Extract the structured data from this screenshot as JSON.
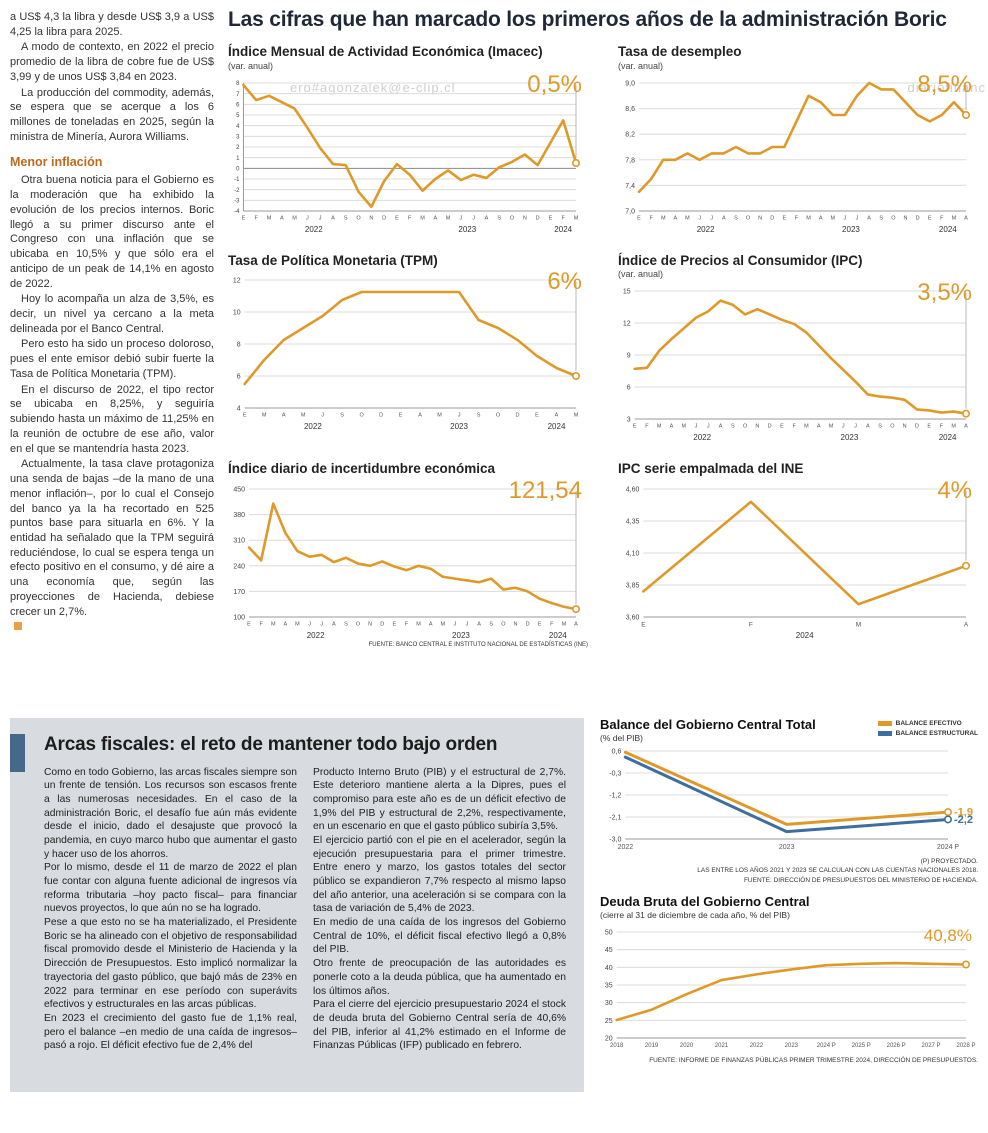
{
  "colors": {
    "accent_orange": "#DF9929",
    "accent_blue": "#3C6E9F",
    "headline_dark": "#1E2836",
    "section_bg": "#D8DCE0",
    "fiscal_accent_bar": "#46688A",
    "heading_orange": "#BE6A1E"
  },
  "watermarks": {
    "w1": "ero#agonzalek@e-clip.cl",
    "w2": "diariofinanc",
    "w3": "ero#agonzalek@e-clip.cl"
  },
  "headline": "Las cifras que han marcado los primeros años de la administración Boric",
  "left_column": {
    "intro_paragraphs": [
      "a US$ 4,3 la libra y desde US$ 3,9 a US$ 4,25 la libra para 2025.",
      "A modo de contexto, en 2022 el precio promedio de la libra de cobre fue de US$ 3,99 y de unos US$ 3,84 en 2023.",
      "La producción del commodity, además, se espera que se acerque a los 6 millones de toneladas en 2025, según la ministra de Minería, Aurora Williams."
    ],
    "heading": "Menor inflación",
    "body_paragraphs": [
      "Otra buena noticia para el Gobierno es la moderación que ha exhibido la evolución de los precios internos. Boric llegó a su primer discurso ante el Congreso con una inflación que se ubicaba en 10,5% y que sólo era el anticipo de un peak de 14,1% en agosto de 2022.",
      "Hoy lo acompaña un alza de 3,5%, es decir, un nivel ya cercano a la meta delineada por el Banco Central.",
      "Pero esto ha sido un proceso doloroso, pues el ente emisor debió subir fuerte la Tasa de Política Monetaria (TPM).",
      "En el discurso de 2022, el tipo rector se ubicaba en 8,25%, y seguiría subiendo hasta un máximo de 11,25% en la reunión de octubre de ese año, valor en el que se mantendría hasta 2023.",
      "Actualmente, la tasa clave protagoniza una senda de bajas –de la mano de una menor inflación–, por lo cual el Consejo del banco ya la ha recortado en 525 puntos base para situarla en 6%. Y la entidad ha señalado que la TPM seguirá reduciéndose, lo cual se espera tenga un efecto positivo en el consumo, y dé aire a una economía que, según las proyecciones de Hacienda, debiese crecer un 2,7%."
    ]
  },
  "fiscal": {
    "title": "Arcas fiscales: el reto de mantener todo bajo orden",
    "col1": [
      "Como en todo Gobierno, las arcas fiscales siempre son un frente de tensión. Los recursos son escasos frente a las numerosas necesidades. En el caso de la administración Boric, el desafío fue aún más evidente desde el inicio, dado el desajuste que provocó la pandemia, en cuyo marco hubo que aumentar el gasto y hacer uso de los ahorros.",
      "Por lo mismo, desde el 11 de marzo de 2022 el plan fue contar con alguna fuente adicional de ingresos vía reforma tributaria –hoy pacto fiscal– para financiar nuevos proyectos, lo que aún no se ha logrado.",
      "Pese a que esto no se ha materializado, el Presidente Boric se ha alineado con el objetivo de responsabilidad fiscal promovido desde el Ministerio de Hacienda y la Dirección de Presupuestos. Esto implicó normalizar la trayectoria del gasto público, que bajó más de 23% en 2022 para terminar en ese período con superávits efectivos y estructurales en las arcas públicas.",
      "En 2023 el crecimiento del gasto fue de 1,1% real, pero el balance –en medio de una caída de ingresos– pasó a rojo. El déficit efectivo fue de 2,4% del"
    ],
    "col2": [
      "Producto Interno Bruto (PIB) y el estructural de 2,7%. Este deterioro mantiene alerta a la Dipres, pues el compromiso para este año es de un déficit efectivo de 1,9% del PIB y estructural de 2,2%, respectivamente, en un escenario en que el gasto público subiría 3,5%.",
      "El ejercicio partió con el pie en el acelerador, según la ejecución presupuestaria para el primer trimestre. Entre enero y marzo, los gastos totales del sector público se expandieron 7,7% respecto al mismo lapso del año anterior, una aceleración si se compara con la tasa de variación de 5,4% de 2023.",
      "En medio de una caída de los ingresos del Gobierno Central de 10%, el déficit fiscal efectivo llegó a 0,8% del PIB.",
      "Otro frente de preocupación de las autoridades es ponerle coto a la deuda pública, que ha aumentado en los últimos años.",
      "Para el cierre del ejercicio presupuestario 2024 el stock de deuda bruta del Gobierno Central sería de 40,6% del PIB, inferior al 41,2% estimado en el Informe de Finanzas Públicas (IFP) publicado en febrero."
    ]
  },
  "chart_data": [
    {
      "name": "imacec",
      "type": "line",
      "title": "Índice Mensual de Actividad Económica (Imacec)",
      "subtitle": "(var. anual)",
      "big_label": "0,5%",
      "ylim": [
        -4,
        8
      ],
      "ytick_values": [
        8,
        7,
        6,
        5,
        4,
        3,
        2,
        1,
        0,
        -1,
        -2,
        -3,
        -4
      ],
      "ytick_labels": [
        "8",
        "7",
        "6",
        "5",
        "4",
        "3",
        "2",
        "1",
        "0",
        "-1",
        "-2",
        "-3",
        "-4"
      ],
      "ytick_size": 6,
      "y_axis_line": true,
      "zero_line": true,
      "xlabels": [
        "E",
        "F",
        "M",
        "A",
        "M",
        "J",
        "J",
        "A",
        "S",
        "O",
        "N",
        "D",
        "E",
        "F",
        "M",
        "A",
        "M",
        "J",
        "J",
        "A",
        "S",
        "O",
        "N",
        "D",
        "E",
        "F",
        "M"
      ],
      "year_groups": [
        {
          "label": "2022",
          "start": 0,
          "end": 11
        },
        {
          "label": "2023",
          "start": 12,
          "end": 23
        },
        {
          "label": "2024",
          "start": 24,
          "end": 26
        }
      ],
      "end_marker": true,
      "series": [
        {
          "name": "Imacec",
          "color": "#DF9929",
          "values": [
            7.8,
            6.4,
            6.8,
            6.2,
            5.6,
            3.8,
            1.9,
            0.4,
            0.3,
            -2.2,
            -3.6,
            -1.2,
            0.4,
            -0.6,
            -2.1,
            -1.0,
            -0.2,
            -1.1,
            -0.6,
            -0.9,
            0.1,
            0.6,
            1.3,
            0.3,
            2.4,
            4.5,
            0.5
          ]
        }
      ]
    },
    {
      "name": "desempleo",
      "type": "line",
      "title": "Tasa de desempleo",
      "subtitle": "(var. anual)",
      "big_label": "8,5%",
      "ylim": [
        7.0,
        9.0
      ],
      "ytick_values": [
        9.0,
        8.6,
        8.2,
        7.8,
        7.4,
        7.0
      ],
      "ytick_labels": [
        "9,0",
        "8,6",
        "8,2",
        "7,8",
        "7,4",
        "7,0"
      ],
      "xlabels": [
        "E",
        "F",
        "M",
        "A",
        "M",
        "J",
        "J",
        "A",
        "S",
        "O",
        "N",
        "D",
        "E",
        "F",
        "M",
        "A",
        "M",
        "J",
        "J",
        "A",
        "S",
        "O",
        "N",
        "D",
        "E",
        "F",
        "M",
        "A"
      ],
      "year_groups": [
        {
          "label": "2022",
          "start": 0,
          "end": 11
        },
        {
          "label": "2023",
          "start": 12,
          "end": 23
        },
        {
          "label": "2024",
          "start": 24,
          "end": 27
        }
      ],
      "end_marker": true,
      "series": [
        {
          "name": "Tasa de desempleo",
          "color": "#DF9929",
          "values": [
            7.3,
            7.5,
            7.8,
            7.8,
            7.9,
            7.8,
            7.9,
            7.9,
            8.0,
            7.9,
            7.9,
            8.0,
            8.0,
            8.4,
            8.8,
            8.7,
            8.5,
            8.5,
            8.8,
            9.0,
            8.9,
            8.9,
            8.7,
            8.5,
            8.4,
            8.5,
            8.7,
            8.5
          ]
        }
      ]
    },
    {
      "name": "tpm",
      "type": "line",
      "title": "Tasa de Política Monetaria (TPM)",
      "big_label": "6%",
      "ylim": [
        4,
        12
      ],
      "ytick_values": [
        12,
        10,
        8,
        6,
        4
      ],
      "ytick_labels": [
        "12",
        "10",
        "8",
        "6",
        "4"
      ],
      "xlabels": [
        "E",
        "M",
        "A",
        "M",
        "J",
        "S",
        "O",
        "D",
        "E",
        "A",
        "M",
        "J",
        "S",
        "O",
        "D",
        "E",
        "A",
        "M"
      ],
      "year_groups": [
        {
          "label": "2022",
          "start": 0,
          "end": 7
        },
        {
          "label": "2023",
          "start": 8,
          "end": 14
        },
        {
          "label": "2024",
          "start": 15,
          "end": 17
        }
      ],
      "end_marker": true,
      "series": [
        {
          "name": "TPM",
          "color": "#DF9929",
          "values": [
            5.5,
            7.0,
            8.25,
            9.0,
            9.75,
            10.75,
            11.25,
            11.25,
            11.25,
            11.25,
            11.25,
            11.25,
            9.5,
            9.0,
            8.25,
            7.25,
            6.5,
            6.0
          ]
        }
      ]
    },
    {
      "name": "ipc",
      "type": "line",
      "title": "Índice de Precios al Consumidor (IPC)",
      "subtitle": "(var. anual)",
      "big_label": "3,5%",
      "ylim": [
        3,
        15
      ],
      "ytick_values": [
        15,
        12,
        9,
        6,
        3
      ],
      "ytick_labels": [
        "15",
        "12",
        "9",
        "6",
        "3"
      ],
      "xlabels": [
        "E",
        "F",
        "M",
        "A",
        "M",
        "J",
        "J",
        "A",
        "S",
        "O",
        "N",
        "D",
        "E",
        "F",
        "M",
        "A",
        "M",
        "J",
        "J",
        "A",
        "S",
        "O",
        "N",
        "D",
        "E",
        "F",
        "M",
        "A"
      ],
      "year_groups": [
        {
          "label": "2022",
          "start": 0,
          "end": 11
        },
        {
          "label": "2023",
          "start": 12,
          "end": 23
        },
        {
          "label": "2024",
          "start": 24,
          "end": 27
        }
      ],
      "end_marker": true,
      "series": [
        {
          "name": "IPC",
          "color": "#DF9929",
          "values": [
            7.7,
            7.8,
            9.4,
            10.5,
            11.5,
            12.5,
            13.1,
            14.1,
            13.7,
            12.8,
            13.3,
            12.8,
            12.3,
            11.9,
            11.1,
            9.9,
            8.7,
            7.6,
            6.5,
            5.3,
            5.1,
            5.0,
            4.8,
            3.9,
            3.8,
            3.6,
            3.7,
            3.5
          ]
        }
      ]
    },
    {
      "name": "incertidumbre",
      "type": "line",
      "title": "Índice diario de incertidumbre económica",
      "big_label": "121,54",
      "ylim": [
        100,
        450
      ],
      "ytick_values": [
        450,
        380,
        310,
        240,
        170,
        100
      ],
      "ytick_labels": [
        "450",
        "380",
        "310",
        "240",
        "170",
        "100"
      ],
      "xlabels": [
        "E",
        "F",
        "M",
        "A",
        "M",
        "J",
        "J",
        "A",
        "S",
        "O",
        "N",
        "D",
        "E",
        "F",
        "M",
        "A",
        "M",
        "J",
        "J",
        "A",
        "S",
        "O",
        "N",
        "D",
        "E",
        "F",
        "M",
        "A"
      ],
      "year_groups": [
        {
          "label": "2022",
          "start": 0,
          "end": 11
        },
        {
          "label": "2023",
          "start": 12,
          "end": 23
        },
        {
          "label": "2024",
          "start": 24,
          "end": 27
        }
      ],
      "end_marker": true,
      "fuente": "FUENTE: BANCO CENTRAL E INSTITUTO NACIONAL DE ESTADÍSTICAS (INE)",
      "series": [
        {
          "name": "Incertidumbre económica",
          "color": "#DF9929",
          "values": [
            290,
            255,
            410,
            330,
            280,
            265,
            270,
            250,
            262,
            246,
            240,
            252,
            238,
            228,
            240,
            232,
            210,
            205,
            200,
            195,
            205,
            175,
            180,
            170,
            150,
            138,
            128,
            121.54
          ]
        }
      ]
    },
    {
      "name": "ipc_ine",
      "type": "line",
      "title": "IPC serie empalmada del INE",
      "big_label": "4%",
      "ylim": [
        3.6,
        4.6
      ],
      "ytick_values": [
        4.6,
        4.35,
        4.1,
        3.85,
        3.6
      ],
      "ytick_labels": [
        "4,60",
        "4,35",
        "4,10",
        "3,85",
        "3,60"
      ],
      "xlabels": [
        "E",
        "F",
        "M",
        "A"
      ],
      "year_groups": [
        {
          "label": "2024",
          "start": 0,
          "end": 3
        }
      ],
      "end_marker": true,
      "series": [
        {
          "name": "IPC serie empalmada",
          "color": "#DF9929",
          "values": [
            3.8,
            4.5,
            3.7,
            4.0
          ]
        }
      ]
    },
    {
      "name": "balance",
      "type": "line",
      "title": "Balance del Gobierno Central Total",
      "subtitle": "(% del PIB)",
      "ylim": [
        -3.0,
        0.6
      ],
      "ytick_values": [
        0.6,
        -0.3,
        -1.2,
        -2.1,
        -3.0
      ],
      "ytick_labels": [
        "0,6",
        "-0,3",
        "-1,2",
        "-2,1",
        "-3,0"
      ],
      "xlabels": [
        "2022",
        "2023",
        "2024 P"
      ],
      "xlabel_size": 7,
      "margin_right": 30,
      "end_marker": true,
      "guide_line": false,
      "stroke_width": 3,
      "footnotes": [
        "(P) PROYECTADO.",
        "LAS ENTRE LOS AÑOS 2021 Y 2023 SE CALCULAN CON LAS CUENTAS NACIONALES 2018.",
        "FUENTE: DIRECCIÓN DE PRESUPUESTOS DEL MINISTERIO DE HACIENDA."
      ],
      "series": [
        {
          "name": "BALANCE EFECTIVO",
          "color": "#DF9929",
          "end_label": "-1,9",
          "values": [
            0.55,
            -2.4,
            -1.9
          ]
        },
        {
          "name": "BALANCE ESTRUCTURAL",
          "color": "#3C6E9F",
          "end_label": "-2,2",
          "values": [
            0.35,
            -2.7,
            -2.2
          ]
        }
      ]
    },
    {
      "name": "deuda",
      "type": "line",
      "title": "Deuda Bruta del Gobierno Central",
      "subtitle": "(cierre al 31 de diciembre de cada año, % del PIB)",
      "big_label": "40,8%",
      "ylim": [
        20,
        50
      ],
      "ytick_values": [
        50,
        45,
        40,
        35,
        30,
        25,
        20
      ],
      "ytick_labels": [
        "50",
        "45",
        "40",
        "35",
        "30",
        "25",
        "20"
      ],
      "xlabels": [
        "2018",
        "2019",
        "2020",
        "2021",
        "2022",
        "2023",
        "2024 P",
        "2025 P",
        "2026 P",
        "2027 P",
        "2028 P"
      ],
      "xlabel_size": 6,
      "end_marker": true,
      "guide_line": false,
      "footnote": "FUENTE: INFORME DE FINANZAS PÚBLICAS PRIMER TRIMESTRE 2024, DIRECCIÓN DE PRESUPUESTOS.",
      "series": [
        {
          "name": "Deuda bruta",
          "color": "#DF9929",
          "values": [
            25.1,
            28.0,
            32.4,
            36.4,
            38.0,
            39.4,
            40.6,
            41.0,
            41.2,
            41.0,
            40.8
          ]
        }
      ]
    }
  ]
}
